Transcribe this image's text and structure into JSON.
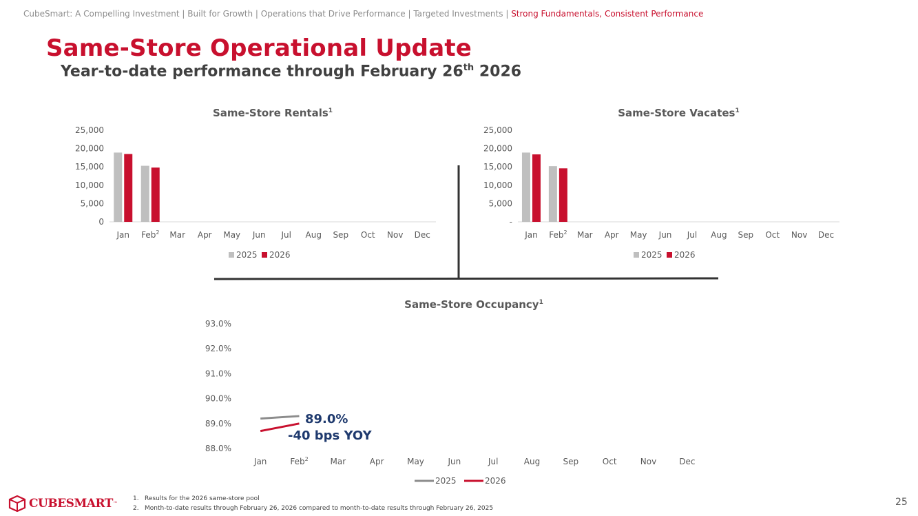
{
  "breadcrumb": {
    "items": [
      "CubeSmart: A Compelling Investment",
      "Built for Growth",
      "Operations that Drive Performance",
      "Targeted Investments"
    ],
    "active": "Strong Fundamentals, Consistent Performance",
    "separator": "|"
  },
  "header": {
    "title": "Same-Store Operational Update",
    "subtitle_main": "Year-to-date performance through February 26",
    "subtitle_sup": "th",
    "subtitle_tail": " 2026"
  },
  "colors": {
    "brand_red": "#c8102e",
    "gray_2025": "#bfbfbf",
    "line_2025": "#8c8c8c",
    "annotation_blue": "#1f3a6e"
  },
  "chart_data": [
    {
      "id": "rentals",
      "type": "bar",
      "title": "Same-Store Rentals",
      "title_sup": "1",
      "categories": [
        "Jan",
        "Feb",
        "Mar",
        "Apr",
        "May",
        "Jun",
        "Jul",
        "Aug",
        "Sep",
        "Oct",
        "Nov",
        "Dec"
      ],
      "category_sup": {
        "Feb": "2"
      },
      "series": [
        {
          "name": "2025",
          "values": [
            18900,
            15300,
            null,
            null,
            null,
            null,
            null,
            null,
            null,
            null,
            null,
            null
          ]
        },
        {
          "name": "2026",
          "values": [
            18500,
            14800,
            null,
            null,
            null,
            null,
            null,
            null,
            null,
            null,
            null,
            null
          ]
        }
      ],
      "ylim": [
        0,
        25000
      ],
      "yticks": [
        0,
        5000,
        10000,
        15000,
        20000,
        25000
      ],
      "ytick_labels": [
        "0",
        "5,000",
        "10,000",
        "15,000",
        "20,000",
        "25,000"
      ],
      "legend": [
        "2025",
        "2026"
      ]
    },
    {
      "id": "vacates",
      "type": "bar",
      "title": "Same-Store Vacates",
      "title_sup": "1",
      "categories": [
        "Jan",
        "Feb",
        "Mar",
        "Apr",
        "May",
        "Jun",
        "Jul",
        "Aug",
        "Sep",
        "Oct",
        "Nov",
        "Dec"
      ],
      "category_sup": {
        "Feb": "2"
      },
      "series": [
        {
          "name": "2025",
          "values": [
            18900,
            15200,
            null,
            null,
            null,
            null,
            null,
            null,
            null,
            null,
            null,
            null
          ]
        },
        {
          "name": "2026",
          "values": [
            18400,
            14600,
            null,
            null,
            null,
            null,
            null,
            null,
            null,
            null,
            null,
            null
          ]
        }
      ],
      "ylim": [
        0,
        25000
      ],
      "yticks": [
        0,
        5000,
        10000,
        15000,
        20000,
        25000
      ],
      "ytick_labels": [
        "-",
        "5,000",
        "10,000",
        "15,000",
        "20,000",
        "25,000"
      ],
      "legend": [
        "2025",
        "2026"
      ]
    },
    {
      "id": "occupancy",
      "type": "line",
      "title": "Same-Store Occupancy",
      "title_sup": "1",
      "categories": [
        "Jan",
        "Feb",
        "Mar",
        "Apr",
        "May",
        "Jun",
        "Jul",
        "Aug",
        "Sep",
        "Oct",
        "Nov",
        "Dec"
      ],
      "category_sup": {
        "Feb": "2"
      },
      "series": [
        {
          "name": "2025",
          "values": [
            89.2,
            89.3,
            null,
            null,
            null,
            null,
            null,
            null,
            null,
            null,
            null,
            null
          ]
        },
        {
          "name": "2026",
          "values": [
            88.7,
            89.0,
            null,
            null,
            null,
            null,
            null,
            null,
            null,
            null,
            null,
            null
          ]
        }
      ],
      "ylim": [
        88.0,
        93.0
      ],
      "yticks": [
        88.0,
        89.0,
        90.0,
        91.0,
        92.0,
        93.0
      ],
      "ytick_labels": [
        "88.0%",
        "89.0%",
        "90.0%",
        "91.0%",
        "92.0%",
        "93.0%"
      ],
      "legend": [
        "2025",
        "2026"
      ],
      "annotations": [
        "89.0%",
        "-40 bps YOY"
      ]
    }
  ],
  "footnotes": [
    {
      "num": "1.",
      "text": "Results for the 2026 same-store pool"
    },
    {
      "num": "2.",
      "text": "Month-to-date results through February 26, 2026 compared to month-to-date results through February 26, 2025"
    }
  ],
  "page_number": "25",
  "logo": {
    "text": "CUBESMART",
    "mark": "™"
  }
}
